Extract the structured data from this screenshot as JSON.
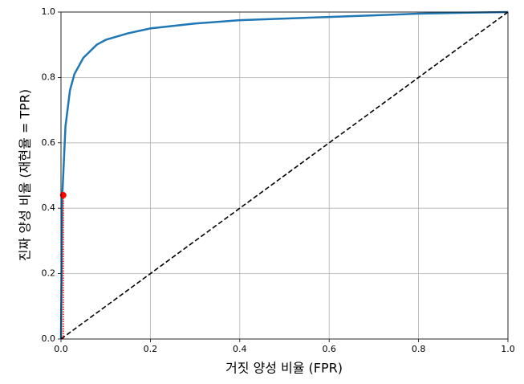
{
  "chart_data": {
    "type": "line",
    "xlabel": "거짓 양성 비율 (FPR)",
    "ylabel": "진짜 양성 비율 (재현율 = TPR)",
    "xlim": [
      0,
      1
    ],
    "ylim": [
      0,
      1
    ],
    "xticks": [
      {
        "value": 0,
        "label": "0.0"
      },
      0.2,
      0.4,
      0.6,
      0.8,
      {
        "value": 1,
        "label": "1.0"
      }
    ],
    "yticks": [
      {
        "value": 0,
        "label": "0.0"
      },
      0.2,
      0.4,
      0.6,
      0.8,
      {
        "value": 1,
        "label": "1.0"
      }
    ],
    "grid": true,
    "series": [
      {
        "color": "#1f77b4",
        "linestyle": "solid",
        "x": [
          0,
          0.003,
          0.01,
          0.02,
          0.03,
          0.05,
          0.08,
          0.1,
          0.15,
          0.2,
          0.3,
          0.4,
          0.5,
          0.6,
          0.7,
          0.8,
          0.9,
          1
        ],
        "values": [
          0,
          0.44,
          0.65,
          0.76,
          0.81,
          0.86,
          0.9,
          0.915,
          0.935,
          0.95,
          0.965,
          0.975,
          0.98,
          0.985,
          0.99,
          0.995,
          0.998,
          1
        ]
      },
      {
        "color": "#000000",
        "linestyle": "dashed",
        "x": [
          0,
          1
        ],
        "values": [
          0,
          1
        ]
      },
      {
        "color": "#ff0000",
        "linestyle": "dotted",
        "x": [
          0.005,
          0.005
        ],
        "values": [
          0,
          0.44
        ]
      },
      {
        "color": "#ff0000",
        "linestyle": "none",
        "marker": "o",
        "x": [
          0.005
        ],
        "values": [
          0.44
        ]
      }
    ]
  }
}
